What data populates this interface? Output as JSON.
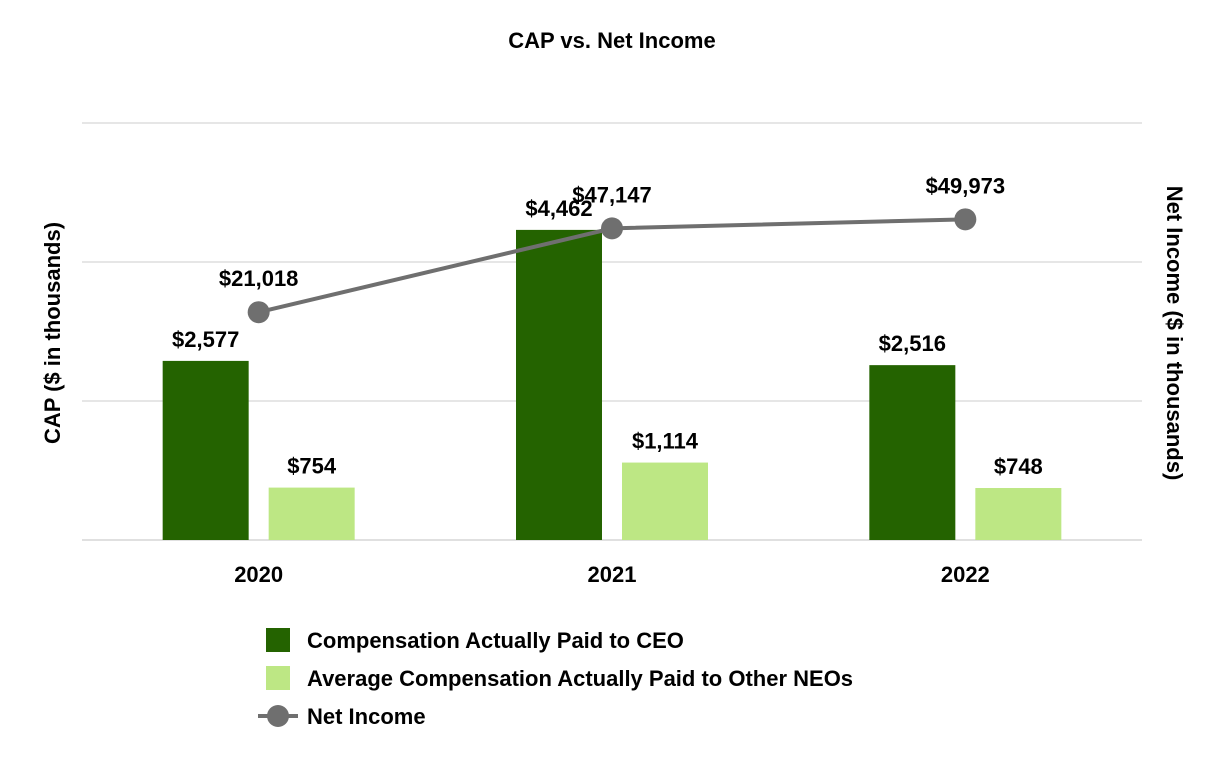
{
  "chart_data": {
    "type": "bar",
    "title": "CAP vs. Net Income",
    "categories": [
      "2020",
      "2021",
      "2022"
    ],
    "ylabel": "CAP ($ in thousands)",
    "y2label": "Net Income ($ in thousands)",
    "ylim": [
      0,
      6000
    ],
    "y2lim": [
      -50000,
      80000
    ],
    "grid": true,
    "legend_position": "bottom",
    "series": [
      {
        "name": "Compensation Actually Paid to CEO",
        "type": "bar",
        "axis": "left",
        "color": "#246300",
        "values": [
          2577,
          4462,
          2516
        ],
        "labels": [
          "$2,577",
          "$4,462",
          "$2,516"
        ]
      },
      {
        "name": "Average Compensation Actually Paid to Other NEOs",
        "type": "bar",
        "axis": "left",
        "color": "#bde784",
        "values": [
          754,
          1114,
          748
        ],
        "labels": [
          "$754",
          "$1,114",
          "$748"
        ]
      },
      {
        "name": "Net Income",
        "type": "line",
        "axis": "right",
        "color": "#6f6f6f",
        "values": [
          21018,
          47147,
          49973
        ],
        "labels": [
          "$21,018",
          "$47,147",
          "$49,973"
        ]
      }
    ]
  }
}
